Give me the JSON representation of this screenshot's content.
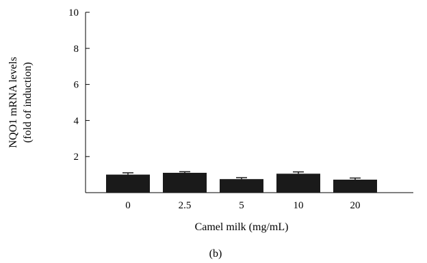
{
  "chart_data": {
    "type": "bar",
    "categories": [
      "0",
      "2.5",
      "5",
      "10",
      "20"
    ],
    "values": [
      1.0,
      1.1,
      0.75,
      1.05,
      0.72
    ],
    "errors": [
      0.1,
      0.06,
      0.08,
      0.1,
      0.09
    ],
    "ylabel_line1": "NQO1 mRNA levels",
    "ylabel_line2": "(fold of induction)",
    "xlabel": "Camel milk (mg/mL)",
    "panel_label": "(b)",
    "ylim": [
      0,
      10
    ],
    "yticks": [
      "2",
      "4",
      "6",
      "8",
      "10"
    ],
    "bar_color": "#1a1a1a",
    "grid": false
  }
}
